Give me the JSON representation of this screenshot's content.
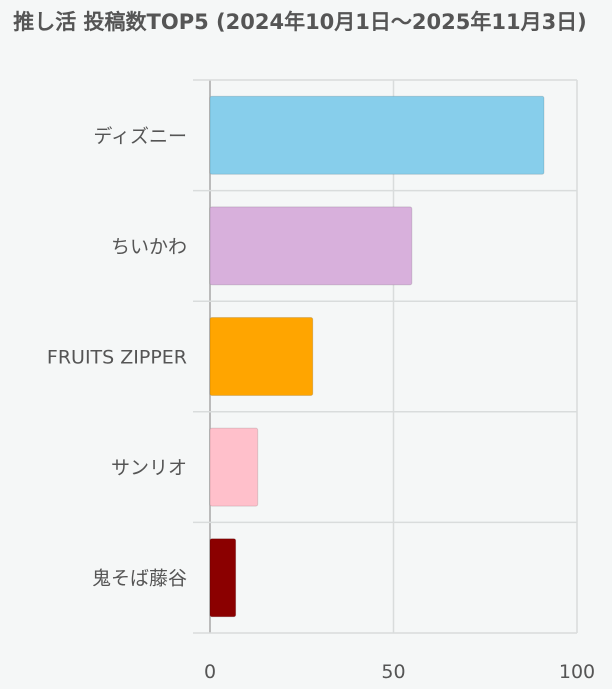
{
  "chart_data": {
    "type": "bar",
    "orientation": "horizontal",
    "title": "推し活 投稿数TOP5 (2024年10月1日〜2025年11月3日)",
    "categories": [
      "ディズニー",
      "ちいかわ",
      "FRUITS ZIPPER",
      "サンリオ",
      "鬼そば藤谷"
    ],
    "values": [
      91,
      55,
      28,
      13,
      7
    ],
    "colors": [
      "#87ceeb",
      "#d8b0dc",
      "#ffa500",
      "#ffc0cb",
      "#8b0000"
    ],
    "xlim": [
      0,
      100
    ],
    "xticks": [
      0,
      50,
      100
    ],
    "grid": true
  }
}
